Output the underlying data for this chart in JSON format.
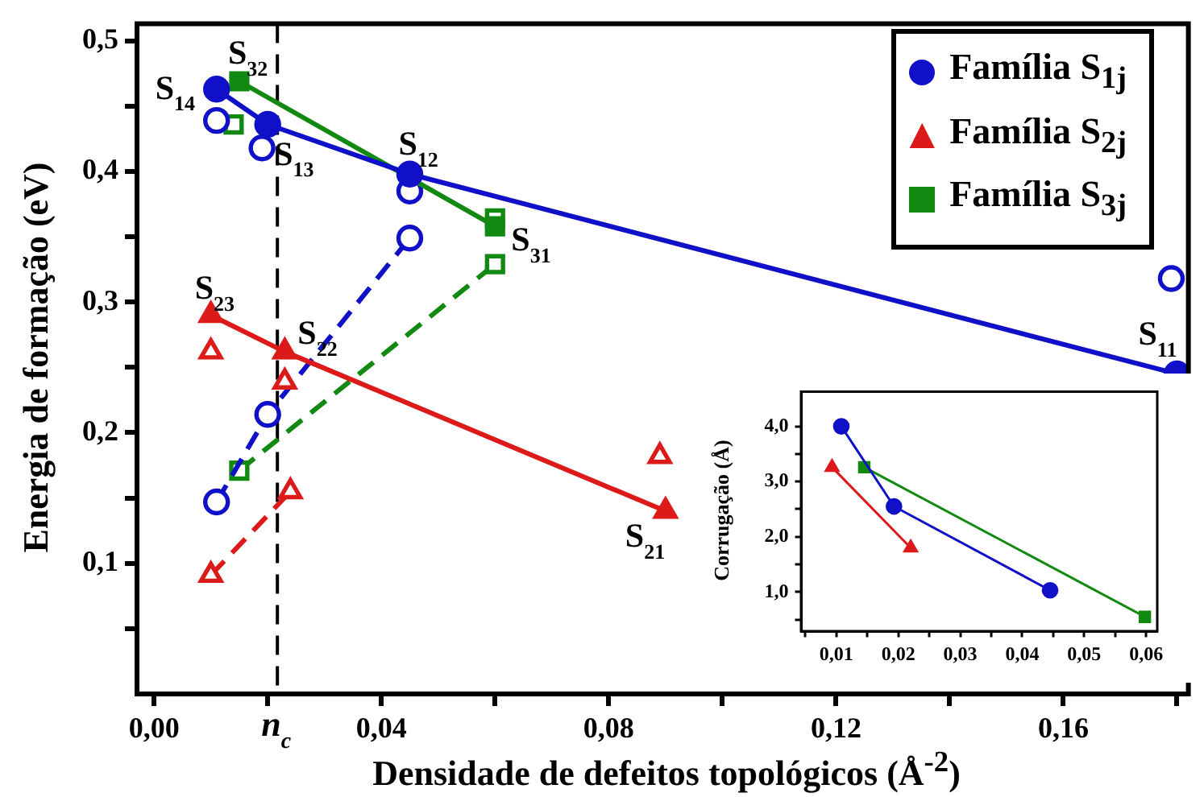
{
  "chart_data": [
    {
      "type": "line",
      "xlabel": "Densidade de defeitos topológicos (Å$^{-2}$)",
      "ylabel": "Energia de formação (eV)",
      "xlim": [
        -0.003,
        0.182
      ],
      "ylim": [
        0,
        0.513
      ],
      "xticks": [
        {
          "value": 0,
          "label": "0,00"
        },
        {
          "value": 0.02,
          "label": null
        },
        {
          "value": 0.04,
          "label": "0,04"
        },
        {
          "value": 0.06,
          "label": null
        },
        {
          "value": 0.08,
          "label": "0,08"
        },
        {
          "value": 0.1,
          "label": null
        },
        {
          "value": 0.12,
          "label": "0,12"
        },
        {
          "value": 0.14,
          "label": null
        },
        {
          "value": 0.16,
          "label": "0,16"
        },
        {
          "value": 0.18,
          "label": null
        }
      ],
      "yticks": [
        {
          "value": 0.05,
          "label": null
        },
        {
          "value": 0.1,
          "label": "0,1"
        },
        {
          "value": 0.15,
          "label": null
        },
        {
          "value": 0.2,
          "label": "0,2"
        },
        {
          "value": 0.25,
          "label": null
        },
        {
          "value": 0.3,
          "label": "0,3"
        },
        {
          "value": 0.35,
          "label": null
        },
        {
          "value": 0.4,
          "label": "0,4"
        },
        {
          "value": 0.45,
          "label": null
        },
        {
          "value": 0.5,
          "label": "0,5"
        }
      ],
      "grid": false,
      "legend": "top right",
      "series": [
        {
          "name": "Família S$_{1j}$",
          "type": "line",
          "marker": "circle",
          "line_style": "solid",
          "color": "#1010c8",
          "x": [
            0.011,
            0.02,
            0.045,
            0.18
          ],
          "values": [
            0.463,
            0.436,
            0.398,
            0.245
          ]
        },
        {
          "name": "Família S$_{2j}$",
          "type": "line",
          "marker": "triangle",
          "line_style": "solid",
          "color": "#dd1a1a",
          "x": [
            0.01,
            0.023,
            0.09
          ],
          "values": [
            0.29,
            0.262,
            0.14
          ]
        },
        {
          "name": "Família S$_{3j}$",
          "type": "line",
          "marker": "square",
          "line_style": "solid",
          "color": "#128a12",
          "x": [
            0.015,
            0.06
          ],
          "values": [
            0.469,
            0.358
          ]
        },
        {
          "type": "scatter",
          "marker": "circle",
          "color": "#1010c8",
          "x": [
            0.011,
            0.019,
            0.045,
            0.179
          ],
          "values": [
            0.439,
            0.418,
            0.385,
            0.318
          ]
        },
        {
          "type": "scatter",
          "marker": "triangle",
          "color": "#dd1a1a",
          "x": [
            0.01,
            0.023,
            0.089
          ],
          "values": [
            0.262,
            0.239,
            0.182
          ]
        },
        {
          "type": "scatter",
          "marker": "square",
          "color": "#128a12",
          "x": [
            0.014,
            0.06
          ],
          "values": [
            0.436,
            0.364
          ]
        },
        {
          "type": "line",
          "marker": "circle",
          "line_style": "dashed",
          "color": "#1010c8",
          "x": [
            0.011,
            0.02,
            0.045
          ],
          "values": [
            0.147,
            0.214,
            0.349
          ]
        },
        {
          "type": "line",
          "marker": "triangle",
          "line_style": "dashed",
          "color": "#dd1a1a",
          "x": [
            0.01,
            0.024
          ],
          "values": [
            0.091,
            0.155
          ]
        },
        {
          "type": "line",
          "marker": "square",
          "line_style": "dashed",
          "color": "#128a12",
          "x": [
            0.015,
            0.06
          ],
          "values": [
            0.171,
            0.329
          ]
        }
      ],
      "ref_lines": [
        {
          "axis": "x",
          "value": 0.0217,
          "label": "n$_{c}$",
          "color": "#000000",
          "line_style": "dashed"
        }
      ],
      "annotations": [
        {
          "text": "S$_{14}$",
          "x": 0.011,
          "y": 0.463
        },
        {
          "text": "S$_{32}$",
          "x": 0.015,
          "y": 0.469
        },
        {
          "text": "S$_{13}$",
          "x": 0.02,
          "y": 0.436
        },
        {
          "text": "S$_{12}$",
          "x": 0.045,
          "y": 0.398
        },
        {
          "text": "S$_{31}$",
          "x": 0.06,
          "y": 0.358
        },
        {
          "text": "S$_{11}$",
          "x": 0.18,
          "y": 0.245
        },
        {
          "text": "S$_{23}$",
          "x": 0.01,
          "y": 0.29
        },
        {
          "text": "S$_{22}$",
          "x": 0.023,
          "y": 0.262
        },
        {
          "text": "S$_{21}$",
          "x": 0.09,
          "y": 0.14
        }
      ]
    },
    {
      "type": "line",
      "ylabel": "Corrugação (Å)",
      "xlim": [
        0.0043,
        0.0618
      ],
      "ylim": [
        0.29,
        4.63
      ],
      "xticks": [
        {
          "value": 0.005,
          "label": null
        },
        {
          "value": 0.01,
          "label": "0,01"
        },
        {
          "value": 0.015,
          "label": null
        },
        {
          "value": 0.02,
          "label": "0,02"
        },
        {
          "value": 0.025,
          "label": null
        },
        {
          "value": 0.03,
          "label": "0,03"
        },
        {
          "value": 0.035,
          "label": null
        },
        {
          "value": 0.04,
          "label": "0,04"
        },
        {
          "value": 0.045,
          "label": null
        },
        {
          "value": 0.05,
          "label": "0,05"
        },
        {
          "value": 0.055,
          "label": null
        },
        {
          "value": 0.06,
          "label": "0,06"
        }
      ],
      "yticks": [
        {
          "value": 0.5,
          "label": null
        },
        {
          "value": 1,
          "label": "1,0"
        },
        {
          "value": 1.5,
          "label": null
        },
        {
          "value": 2,
          "label": "2,0"
        },
        {
          "value": 2.5,
          "label": null
        },
        {
          "value": 3,
          "label": "3,0"
        },
        {
          "value": 3.5,
          "label": null
        },
        {
          "value": 4,
          "label": "4,0"
        }
      ],
      "grid": false,
      "series": [
        {
          "type": "line",
          "marker": "circle",
          "color": "#1010c8",
          "x": [
            0.0108,
            0.0193,
            0.0445
          ],
          "values": [
            4.0,
            2.55,
            1.03
          ]
        },
        {
          "type": "line",
          "marker": "triangle",
          "color": "#dd1a1a",
          "x": [
            0.0093,
            0.022
          ],
          "values": [
            3.26,
            1.8
          ]
        },
        {
          "type": "line",
          "marker": "square",
          "color": "#128a12",
          "x": [
            0.0145,
            0.0598
          ],
          "values": [
            3.26,
            0.55
          ]
        }
      ]
    }
  ]
}
